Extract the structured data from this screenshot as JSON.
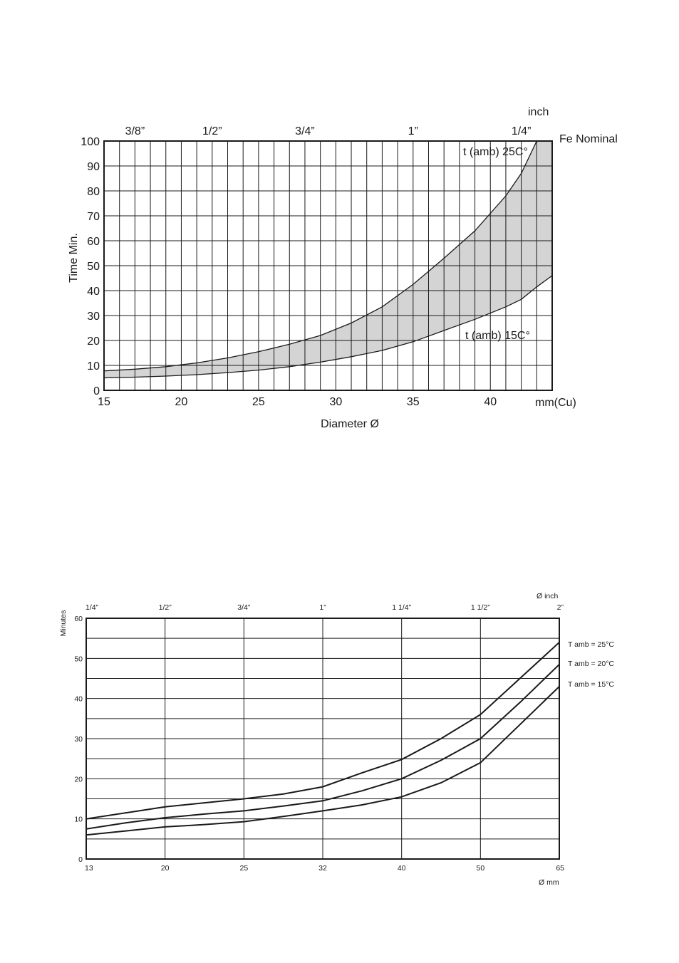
{
  "chart_data": [
    {
      "type": "area",
      "xlabel": "Diameter Ø",
      "ylabel": "Time Min.",
      "x_unit": "mm(Cu)",
      "top_axis_unit": "inch",
      "top_axis_right_label": "Fe Nominal",
      "xlim": [
        15,
        44
      ],
      "ylim": [
        0,
        100
      ],
      "x_ticks": [
        15,
        20,
        25,
        30,
        35,
        40
      ],
      "y_ticks": [
        0,
        10,
        20,
        30,
        40,
        50,
        60,
        70,
        80,
        90,
        100
      ],
      "top_ticks": [
        {
          "label": "3/8”",
          "x": 17
        },
        {
          "label": "1/2”",
          "x": 22
        },
        {
          "label": "3/4”",
          "x": 28
        },
        {
          "label": "1”",
          "x": 35
        },
        {
          "label": "1/4”",
          "x": 42
        }
      ],
      "grid": true,
      "series": [
        {
          "name": "t (amb) 25C°",
          "x": [
            15,
            17,
            19,
            21,
            23,
            25,
            27,
            29,
            31,
            33,
            35,
            37,
            39,
            41,
            42,
            43
          ],
          "y": [
            7.8,
            8.5,
            9.5,
            11,
            13,
            15.5,
            18.5,
            22,
            27,
            33.5,
            42.5,
            53,
            64,
            78,
            87,
            100
          ]
        },
        {
          "name": "t (amb) 15C°",
          "x": [
            15,
            17,
            19,
            21,
            23,
            25,
            27,
            29,
            31,
            33,
            35,
            37,
            39,
            41,
            42,
            43,
            44
          ],
          "y": [
            5,
            5.3,
            5.7,
            6.3,
            7.1,
            8.1,
            9.5,
            11.3,
            13.5,
            16,
            19.5,
            24,
            28.5,
            33.5,
            36.5,
            41.5,
            46
          ]
        }
      ]
    },
    {
      "type": "line",
      "ylabel": "Minutes",
      "x_unit": "Ø mm",
      "top_axis_unit": "Ø inch",
      "ylim": [
        0,
        60
      ],
      "y_ticks": [
        0,
        10,
        20,
        30,
        40,
        50,
        60
      ],
      "x_categories": [
        "13",
        "20",
        "25",
        "32",
        "40",
        "50",
        "65"
      ],
      "top_categories": [
        "1/4”",
        "1/2”",
        "3/4”",
        "1”",
        "1 1/4”",
        "1 1/2”",
        "2”"
      ],
      "grid": true,
      "series": [
        {
          "name": "T amb = 25°C",
          "x": [
            0,
            0.5,
            1,
            1.5,
            2,
            2.5,
            3,
            3.5,
            4,
            4.5,
            5,
            5.5,
            6
          ],
          "y": [
            10,
            11.5,
            13,
            14,
            15,
            16.2,
            18,
            21.5,
            24.8,
            30,
            36,
            45,
            54
          ]
        },
        {
          "name": "T amb = 20°C",
          "x": [
            0,
            0.5,
            1,
            1.5,
            2,
            2.5,
            3,
            3.5,
            4,
            4.5,
            5,
            5.5,
            6
          ],
          "y": [
            7.5,
            9,
            10.3,
            11.2,
            12,
            13.2,
            14.5,
            17,
            20,
            24.6,
            30,
            39,
            48.5
          ]
        },
        {
          "name": "T amb = 15°C",
          "x": [
            0,
            0.5,
            1,
            1.5,
            2,
            2.5,
            3,
            3.5,
            4,
            4.5,
            5,
            5.5,
            6
          ],
          "y": [
            6,
            7,
            8,
            8.6,
            9.3,
            10.6,
            12,
            13.5,
            15.5,
            19,
            24,
            33.5,
            43
          ]
        }
      ]
    }
  ]
}
